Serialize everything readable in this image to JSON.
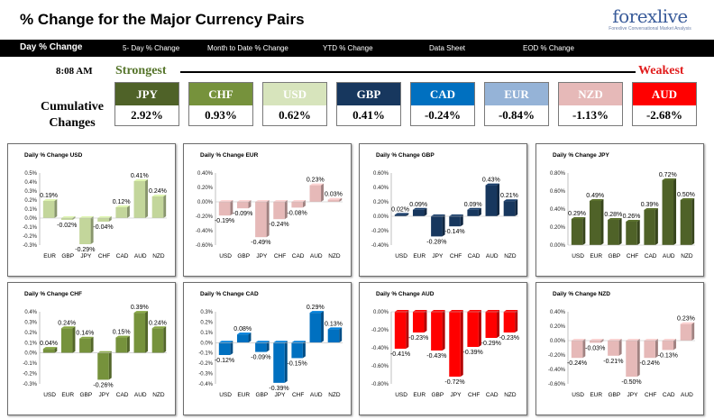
{
  "header": {
    "title": "% Change for the Major Currency Pairs",
    "logo_main": "forexlive",
    "logo_sub": "Forexlive Conversational Market Analysis"
  },
  "tabs": [
    "Day % Change",
    "5- Day % Change",
    "Month to Date % Change",
    "YTD % Change",
    "Data Sheet",
    "EOD % Change"
  ],
  "summary": {
    "time": "8:08 AM",
    "strongest_label": "Strongest",
    "weakest_label": "Weakest",
    "cumulative_label_1": "Cumulative",
    "cumulative_label_2": "Changes",
    "currencies": [
      {
        "name": "JPY",
        "value": "2.92%",
        "color": "#4f6228"
      },
      {
        "name": "CHF",
        "value": "0.93%",
        "color": "#76923c"
      },
      {
        "name": "USD",
        "value": "0.62%",
        "color": "#d7e4bc"
      },
      {
        "name": "GBP",
        "value": "0.41%",
        "color": "#17375e"
      },
      {
        "name": "CAD",
        "value": "-0.24%",
        "color": "#0070c0"
      },
      {
        "name": "EUR",
        "value": "-0.84%",
        "color": "#95b3d7"
      },
      {
        "name": "NZD",
        "value": "-1.13%",
        "color": "#e6b9b8"
      },
      {
        "name": "AUD",
        "value": "-2.68%",
        "color": "#ff0000"
      }
    ]
  },
  "chart_data": [
    {
      "type": "bar",
      "title": "Daily % Change USD",
      "categories": [
        "EUR",
        "GBP",
        "JPY",
        "CHF",
        "CAD",
        "AUD",
        "NZD"
      ],
      "values": [
        0.19,
        -0.02,
        -0.29,
        -0.04,
        0.12,
        0.41,
        0.24
      ],
      "labels": [
        "0.19%",
        "-0.02%",
        "-0.29%",
        "-0.04%",
        "0.12%",
        "0.41%",
        "0.24%"
      ],
      "ylim": [
        -0.3,
        0.5
      ],
      "ticks": [
        "0.5%",
        "0.4%",
        "0.3%",
        "0.2%",
        "0.1%",
        "0.0%",
        "-0.1%",
        "-0.2%",
        "-0.3%"
      ],
      "tick_values": [
        0.5,
        0.4,
        0.3,
        0.2,
        0.1,
        0.0,
        -0.1,
        -0.2,
        -0.3
      ],
      "color": "#c3d69b"
    },
    {
      "type": "bar",
      "title": "Daily % Change EUR",
      "categories": [
        "USD",
        "GBP",
        "JPY",
        "CHF",
        "CAD",
        "AUD",
        "NZD"
      ],
      "values": [
        -0.19,
        -0.09,
        -0.49,
        -0.24,
        -0.08,
        0.23,
        0.03
      ],
      "labels": [
        "-0.19%",
        "-0.09%",
        "-0.49%",
        "-0.24%",
        "-0.08%",
        "0.23%",
        "0.03%"
      ],
      "ylim": [
        -0.6,
        0.4
      ],
      "ticks": [
        "0.40%",
        "0.20%",
        "0.00%",
        "-0.20%",
        "-0.40%",
        "-0.60%"
      ],
      "tick_values": [
        0.4,
        0.2,
        0.0,
        -0.2,
        -0.4,
        -0.6
      ],
      "color": "#e6b9b8"
    },
    {
      "type": "bar",
      "title": "Daily % Change GBP",
      "categories": [
        "USD",
        "EUR",
        "JPY",
        "CHF",
        "CAD",
        "AUD",
        "NZD"
      ],
      "values": [
        0.02,
        0.09,
        -0.28,
        -0.14,
        0.09,
        0.43,
        0.21
      ],
      "labels": [
        "0.02%",
        "0.09%",
        "-0.28%",
        "-0.14%",
        "0.09%",
        "0.43%",
        "0.21%"
      ],
      "ylim": [
        -0.4,
        0.6
      ],
      "ticks": [
        "0.60%",
        "0.40%",
        "0.20%",
        "0.00%",
        "-0.20%",
        "-0.40%"
      ],
      "tick_values": [
        0.6,
        0.4,
        0.2,
        0.0,
        -0.2,
        -0.4
      ],
      "color": "#17375e"
    },
    {
      "type": "bar",
      "title": "Daily % Change JPY",
      "categories": [
        "USD",
        "EUR",
        "GBP",
        "CHF",
        "CAD",
        "AUD",
        "NZD"
      ],
      "values": [
        0.29,
        0.49,
        0.28,
        0.26,
        0.39,
        0.72,
        0.5
      ],
      "labels": [
        "0.29%",
        "0.49%",
        "0.28%",
        "0.26%",
        "0.39%",
        "0.72%",
        "0.50%"
      ],
      "ylim": [
        0,
        0.8
      ],
      "ticks": [
        "0.80%",
        "0.60%",
        "0.40%",
        "0.20%",
        "0.00%"
      ],
      "tick_values": [
        0.8,
        0.6,
        0.4,
        0.2,
        0.0
      ],
      "color": "#4f6228"
    },
    {
      "type": "bar",
      "title": "Daily % Change CHF",
      "categories": [
        "USD",
        "EUR",
        "GBP",
        "JPY",
        "CAD",
        "AUD",
        "NZD"
      ],
      "values": [
        0.04,
        0.24,
        0.14,
        -0.26,
        0.15,
        0.39,
        0.24
      ],
      "labels": [
        "0.04%",
        "0.24%",
        "0.14%",
        "-0.26%",
        "0.15%",
        "0.39%",
        "0.24%"
      ],
      "ylim": [
        -0.3,
        0.4
      ],
      "ticks": [
        "0.4%",
        "0.3%",
        "0.2%",
        "0.1%",
        "0.0%",
        "-0.1%",
        "-0.2%",
        "-0.3%"
      ],
      "tick_values": [
        0.4,
        0.3,
        0.2,
        0.1,
        0.0,
        -0.1,
        -0.2,
        -0.3
      ],
      "color": "#76923c"
    },
    {
      "type": "bar",
      "title": "Daily % Change CAD",
      "categories": [
        "USD",
        "EUR",
        "GBP",
        "JPY",
        "CHF",
        "AUD",
        "NZD"
      ],
      "values": [
        -0.12,
        0.08,
        -0.09,
        -0.39,
        -0.15,
        0.29,
        0.13
      ],
      "labels": [
        "-0.12%",
        "0.08%",
        "-0.09%",
        "-0.39%",
        "-0.15%",
        "0.29%",
        "0.13%"
      ],
      "ylim": [
        -0.4,
        0.3
      ],
      "ticks": [
        "0.3%",
        "0.2%",
        "0.1%",
        "0.0%",
        "-0.1%",
        "-0.2%",
        "-0.3%",
        "-0.4%"
      ],
      "tick_values": [
        0.3,
        0.2,
        0.1,
        0.0,
        -0.1,
        -0.2,
        -0.3,
        -0.4
      ],
      "color": "#0070c0"
    },
    {
      "type": "bar",
      "title": "Daily % Change AUD",
      "categories": [
        "USD",
        "EUR",
        "GBP",
        "JPY",
        "CHF",
        "CAD",
        "NZD"
      ],
      "values": [
        -0.41,
        -0.23,
        -0.43,
        -0.72,
        -0.39,
        -0.29,
        -0.23
      ],
      "labels": [
        "-0.41%",
        "-0.23%",
        "-0.43%",
        "-0.72%",
        "-0.39%",
        "-0.29%",
        "-0.23%"
      ],
      "ylim": [
        -0.8,
        0
      ],
      "ticks": [
        "0.00%",
        "-0.20%",
        "-0.40%",
        "-0.60%",
        "-0.80%"
      ],
      "tick_values": [
        0.0,
        -0.2,
        -0.4,
        -0.6,
        -0.8
      ],
      "color": "#ff0000"
    },
    {
      "type": "bar",
      "title": "Daily % Change NZD",
      "categories": [
        "USD",
        "EUR",
        "GBP",
        "JPY",
        "CHF",
        "CAD",
        "AUD"
      ],
      "values": [
        -0.24,
        -0.03,
        -0.21,
        -0.5,
        -0.24,
        -0.13,
        0.23
      ],
      "labels": [
        "-0.24%",
        "-0.03%",
        "-0.21%",
        "-0.50%",
        "-0.24%",
        "-0.13%",
        "0.23%"
      ],
      "ylim": [
        -0.6,
        0.4
      ],
      "ticks": [
        "0.40%",
        "0.20%",
        "0.00%",
        "-0.20%",
        "-0.40%",
        "-0.60%"
      ],
      "tick_values": [
        0.4,
        0.2,
        0.0,
        -0.2,
        -0.4,
        -0.6
      ],
      "color": "#e6b9b8"
    }
  ]
}
